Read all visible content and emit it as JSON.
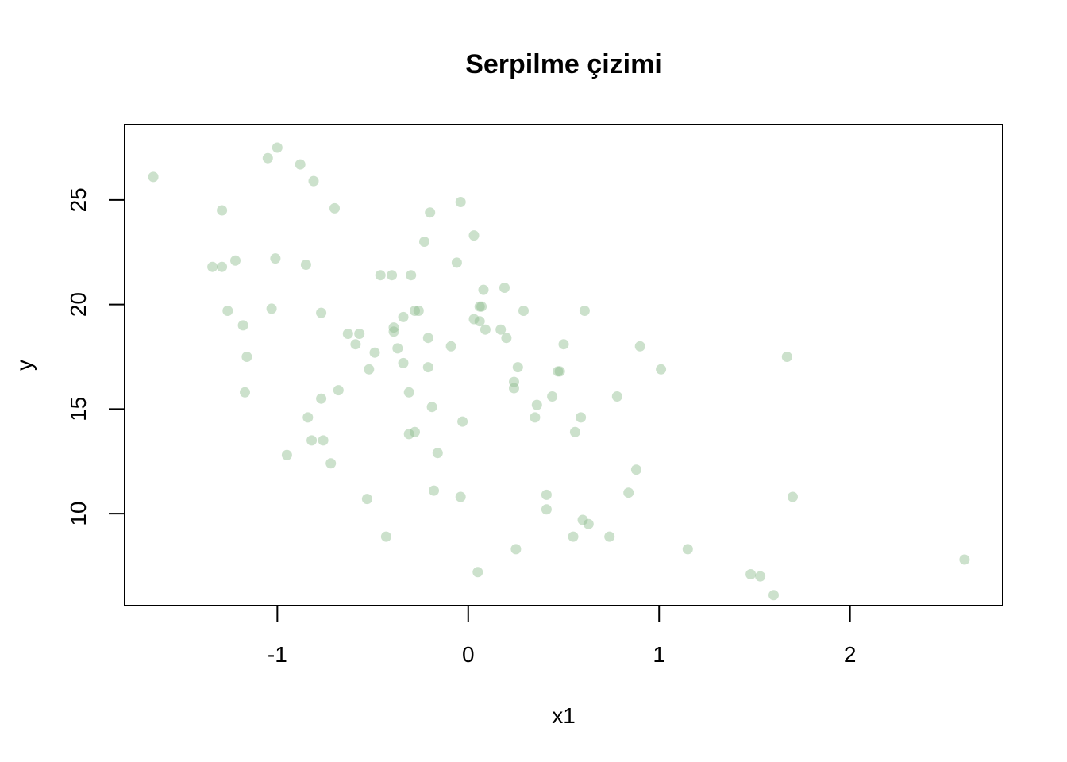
{
  "chart_data": {
    "type": "scatter",
    "title": "Serpilme çizimi",
    "xlabel": "x1",
    "ylabel": "y",
    "xlim": [
      -1.8,
      2.8
    ],
    "ylim": [
      5.6,
      28.6
    ],
    "xticks": [
      -1,
      0,
      1,
      2
    ],
    "xtick_labels": [
      "-1",
      "0",
      "1",
      "2"
    ],
    "yticks": [
      10,
      15,
      20,
      25
    ],
    "ytick_labels": [
      "10",
      "15",
      "20",
      "25"
    ],
    "grid": false,
    "legend": "none",
    "point_color": "#8FBC8F",
    "point_opacity": 0.45,
    "points": [
      {
        "x": -1.65,
        "y": 26.1
      },
      {
        "x": -1.05,
        "y": 27.0
      },
      {
        "x": -1.0,
        "y": 27.5
      },
      {
        "x": -0.88,
        "y": 26.7
      },
      {
        "x": -0.81,
        "y": 25.9
      },
      {
        "x": -0.7,
        "y": 24.6
      },
      {
        "x": -1.29,
        "y": 24.5
      },
      {
        "x": -1.34,
        "y": 21.8
      },
      {
        "x": -1.29,
        "y": 21.8
      },
      {
        "x": -1.22,
        "y": 22.1
      },
      {
        "x": -1.01,
        "y": 22.2
      },
      {
        "x": -0.85,
        "y": 21.9
      },
      {
        "x": -1.26,
        "y": 19.7
      },
      {
        "x": -1.03,
        "y": 19.8
      },
      {
        "x": -0.77,
        "y": 19.6
      },
      {
        "x": -1.18,
        "y": 19.0
      },
      {
        "x": -1.16,
        "y": 17.5
      },
      {
        "x": -1.17,
        "y": 15.8
      },
      {
        "x": -0.77,
        "y": 15.5
      },
      {
        "x": -0.68,
        "y": 15.9
      },
      {
        "x": -0.84,
        "y": 14.6
      },
      {
        "x": -0.82,
        "y": 13.5
      },
      {
        "x": -0.76,
        "y": 13.5
      },
      {
        "x": -0.95,
        "y": 12.8
      },
      {
        "x": -0.72,
        "y": 12.4
      },
      {
        "x": -0.63,
        "y": 18.6
      },
      {
        "x": -0.57,
        "y": 18.6
      },
      {
        "x": -0.59,
        "y": 18.1
      },
      {
        "x": -0.46,
        "y": 21.4
      },
      {
        "x": -0.4,
        "y": 21.4
      },
      {
        "x": -0.3,
        "y": 21.4
      },
      {
        "x": -0.39,
        "y": 18.9
      },
      {
        "x": -0.39,
        "y": 18.7
      },
      {
        "x": -0.34,
        "y": 19.4
      },
      {
        "x": -0.28,
        "y": 19.7
      },
      {
        "x": -0.26,
        "y": 19.7
      },
      {
        "x": -0.49,
        "y": 17.7
      },
      {
        "x": -0.37,
        "y": 17.9
      },
      {
        "x": -0.34,
        "y": 17.2
      },
      {
        "x": -0.52,
        "y": 16.9
      },
      {
        "x": -0.31,
        "y": 15.8
      },
      {
        "x": -0.31,
        "y": 13.8
      },
      {
        "x": -0.28,
        "y": 13.9
      },
      {
        "x": -0.53,
        "y": 10.7
      },
      {
        "x": -0.43,
        "y": 8.9
      },
      {
        "x": -0.23,
        "y": 23.0
      },
      {
        "x": -0.2,
        "y": 24.4
      },
      {
        "x": -0.04,
        "y": 24.9
      },
      {
        "x": 0.03,
        "y": 23.3
      },
      {
        "x": -0.06,
        "y": 22.0
      },
      {
        "x": -0.21,
        "y": 18.4
      },
      {
        "x": -0.09,
        "y": 18.0
      },
      {
        "x": -0.21,
        "y": 17.0
      },
      {
        "x": -0.19,
        "y": 15.1
      },
      {
        "x": -0.03,
        "y": 14.4
      },
      {
        "x": -0.16,
        "y": 12.9
      },
      {
        "x": -0.18,
        "y": 11.1
      },
      {
        "x": -0.04,
        "y": 10.8
      },
      {
        "x": 0.08,
        "y": 20.7
      },
      {
        "x": 0.19,
        "y": 20.8
      },
      {
        "x": 0.06,
        "y": 19.9
      },
      {
        "x": 0.07,
        "y": 19.9
      },
      {
        "x": 0.03,
        "y": 19.3
      },
      {
        "x": 0.06,
        "y": 19.2
      },
      {
        "x": 0.09,
        "y": 18.8
      },
      {
        "x": 0.17,
        "y": 18.8
      },
      {
        "x": 0.2,
        "y": 18.4
      },
      {
        "x": 0.29,
        "y": 19.7
      },
      {
        "x": 0.61,
        "y": 19.7
      },
      {
        "x": 0.26,
        "y": 17.0
      },
      {
        "x": 0.24,
        "y": 16.3
      },
      {
        "x": 0.24,
        "y": 16.0
      },
      {
        "x": 0.5,
        "y": 18.1
      },
      {
        "x": 0.47,
        "y": 16.8
      },
      {
        "x": 0.48,
        "y": 16.8
      },
      {
        "x": 0.44,
        "y": 15.6
      },
      {
        "x": 0.36,
        "y": 15.2
      },
      {
        "x": 0.35,
        "y": 14.6
      },
      {
        "x": 0.59,
        "y": 14.6
      },
      {
        "x": 0.56,
        "y": 13.9
      },
      {
        "x": 0.78,
        "y": 15.6
      },
      {
        "x": 0.9,
        "y": 18.0
      },
      {
        "x": 1.01,
        "y": 16.9
      },
      {
        "x": 0.41,
        "y": 10.9
      },
      {
        "x": 0.41,
        "y": 10.2
      },
      {
        "x": 0.6,
        "y": 9.7
      },
      {
        "x": 0.63,
        "y": 9.5
      },
      {
        "x": 0.55,
        "y": 8.9
      },
      {
        "x": 0.74,
        "y": 8.9
      },
      {
        "x": 0.25,
        "y": 8.3
      },
      {
        "x": 0.05,
        "y": 7.2
      },
      {
        "x": 0.88,
        "y": 12.1
      },
      {
        "x": 0.84,
        "y": 11.0
      },
      {
        "x": 1.15,
        "y": 8.3
      },
      {
        "x": 1.67,
        "y": 17.5
      },
      {
        "x": 1.7,
        "y": 10.8
      },
      {
        "x": 1.48,
        "y": 7.1
      },
      {
        "x": 1.53,
        "y": 7.0
      },
      {
        "x": 1.6,
        "y": 6.1
      },
      {
        "x": 2.6,
        "y": 7.8
      }
    ]
  }
}
